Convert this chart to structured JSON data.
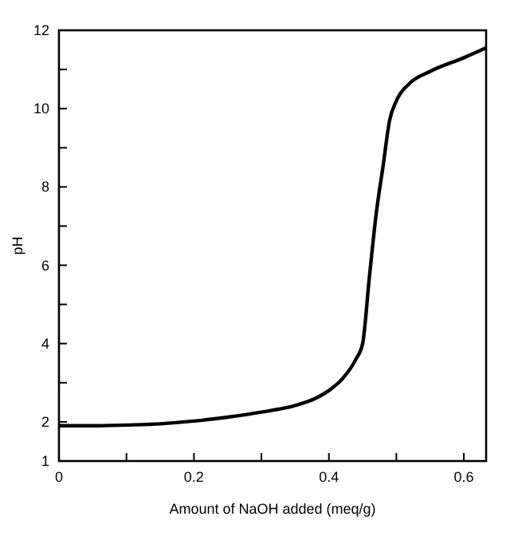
{
  "chart_data": {
    "type": "line",
    "xlabel": "Amount of NaOH added (meq/g)",
    "ylabel": "pH",
    "x": [
      0,
      0.05,
      0.1,
      0.15,
      0.2,
      0.25,
      0.3,
      0.35,
      0.38,
      0.4,
      0.42,
      0.44,
      0.45,
      0.46,
      0.47,
      0.48,
      0.49,
      0.5,
      0.52,
      0.55,
      0.6,
      0.633
    ],
    "series": [
      {
        "color": "#000000",
        "values": [
          1.9,
          1.9,
          1.92,
          1.95,
          2.02,
          2.12,
          2.25,
          2.42,
          2.6,
          2.8,
          3.1,
          3.6,
          4.0,
          5.7,
          7.3,
          8.5,
          9.7,
          10.2,
          10.65,
          10.95,
          11.3,
          11.55
        ]
      }
    ],
    "xlim": [
      0,
      0.633
    ],
    "ylim": [
      1,
      12
    ],
    "xticks": [
      0,
      {
        "value": 0.1,
        "label": null
      },
      0.2,
      {
        "value": 0.3,
        "label": null
      },
      0.4,
      {
        "value": 0.5,
        "label": null
      },
      0.6
    ],
    "yticks": [
      1,
      2,
      {
        "value": 3,
        "label": null
      },
      4,
      {
        "value": 5,
        "label": null
      },
      6,
      {
        "value": 7,
        "label": null
      },
      8,
      {
        "value": 9,
        "label": null
      },
      10,
      {
        "value": 11,
        "label": null
      },
      12
    ],
    "grid": false,
    "marker": "none",
    "line_style": "solid"
  }
}
